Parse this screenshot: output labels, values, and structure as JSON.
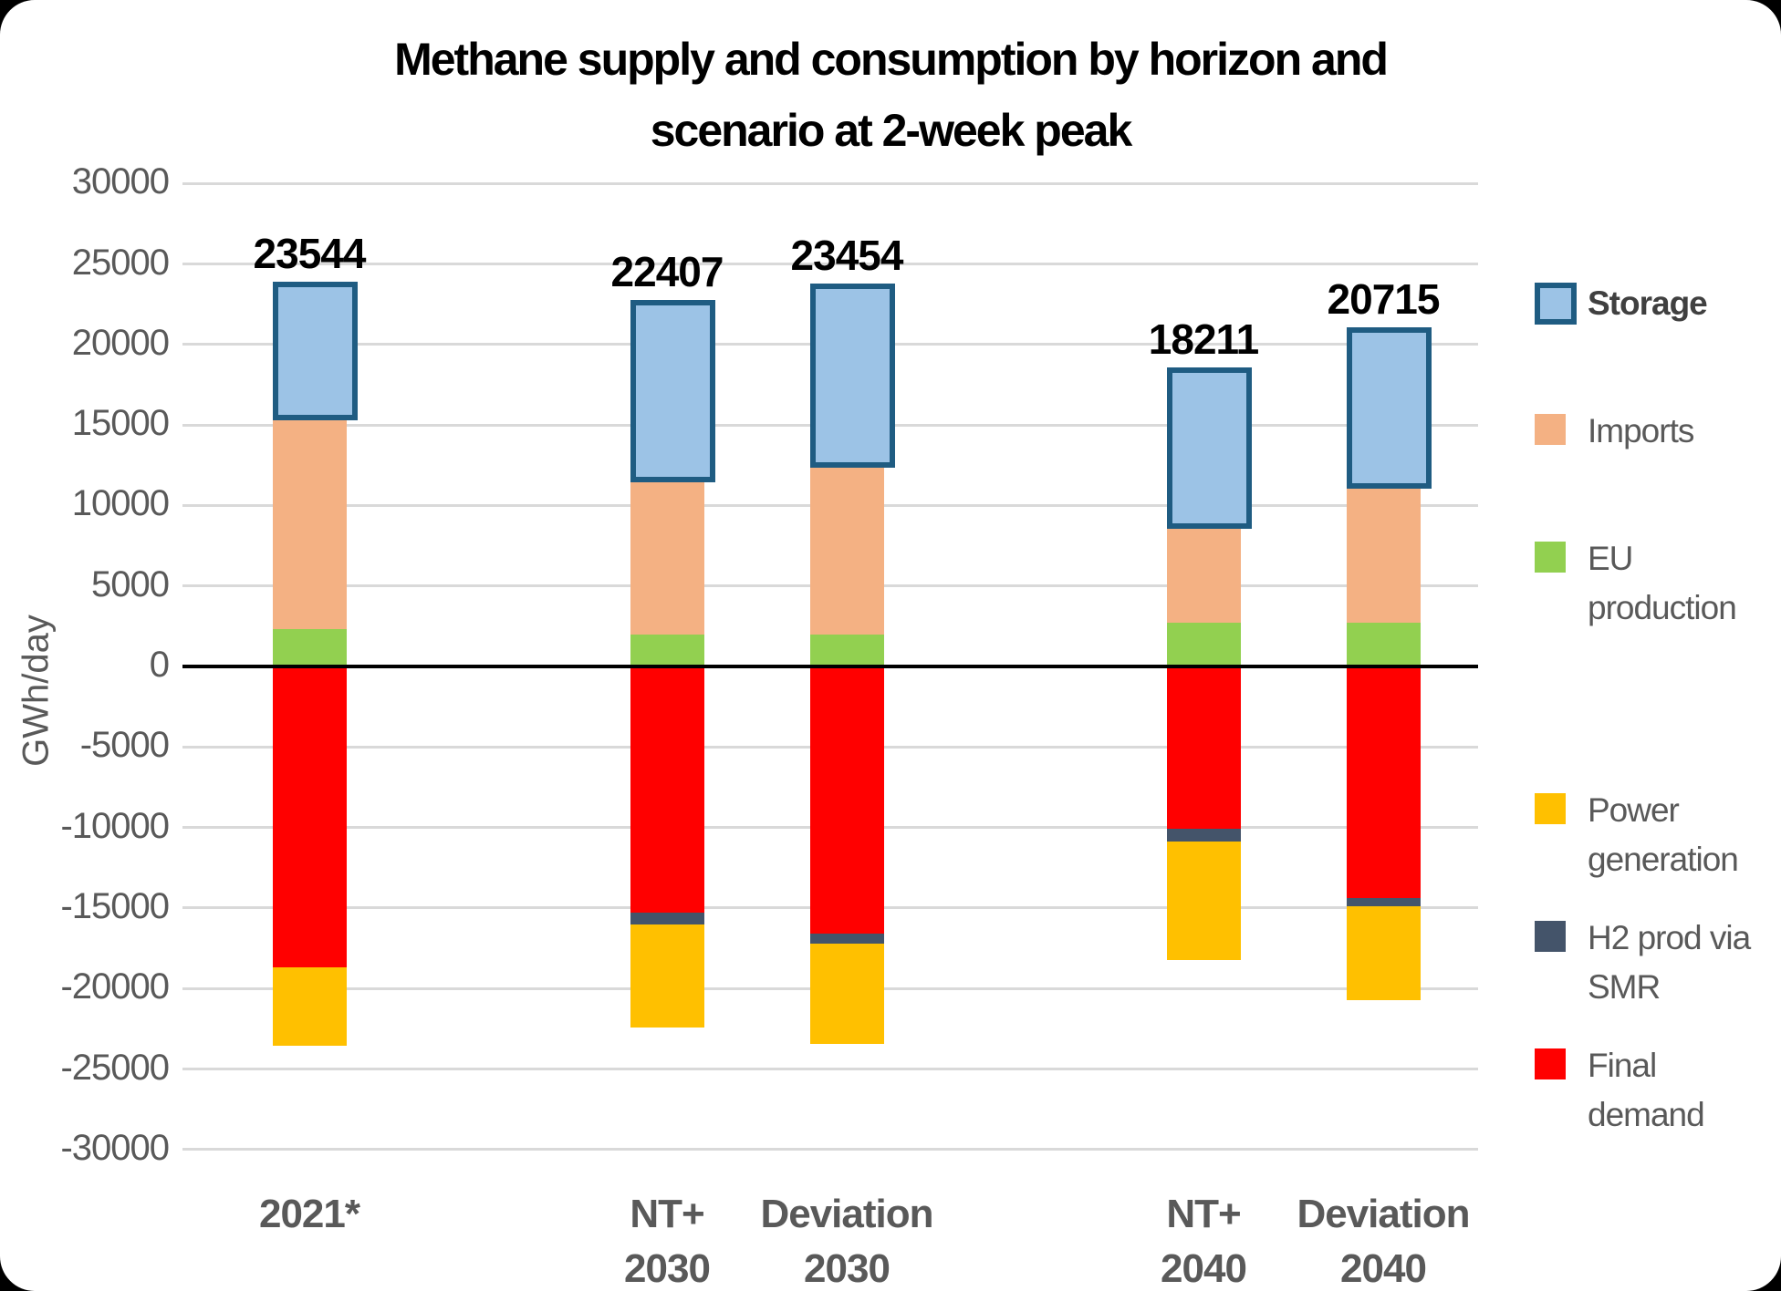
{
  "title": {
    "line1": "Methane supply and consumption by horizon and",
    "line2": "scenario at 2-week peak"
  },
  "y_axis": {
    "title": "GWh/day",
    "max": 30000,
    "min": -30000,
    "step": 5000
  },
  "legend": {
    "items": [
      {
        "label": "Storage",
        "series": "Storage",
        "bold": true
      },
      {
        "label": "Imports",
        "series": "Imports",
        "bold": false
      },
      {
        "label": "EU production",
        "series": "EU production",
        "bold": false
      },
      {
        "label": "Power generation",
        "series": "Power generation",
        "bold": false
      },
      {
        "label": "H2 prod via SMR",
        "series": "H2 prod via SMR",
        "bold": false
      },
      {
        "label": "Final demand",
        "series": "Final demand",
        "bold": false
      }
    ]
  },
  "chart_data": {
    "type": "bar",
    "stacked": true,
    "title": "Methane supply and consumption by horizon and scenario at 2-week peak",
    "xlabel": "",
    "ylabel": "GWh/day",
    "ylim": [
      -30000,
      30000
    ],
    "grid": true,
    "legend_position": "right",
    "categories": [
      "2021*",
      "NT+ 2030",
      "Deviation 2030",
      "NT+ 2040",
      "Deviation 2040"
    ],
    "category_lines": [
      [
        "2021*"
      ],
      [
        "NT+",
        "2030"
      ],
      [
        "Deviation",
        "2030"
      ],
      [
        "NT+",
        "2040"
      ],
      [
        "Deviation",
        "2040"
      ]
    ],
    "totals": [
      23544,
      22407,
      23454,
      18211,
      20715
    ],
    "series": [
      {
        "name": "Storage",
        "color": "#9CC3E6",
        "border": "#1F5C82",
        "values": [
          7944,
          10607,
          10754,
          9311,
          9315
        ]
      },
      {
        "name": "Imports",
        "color": "#F4B183",
        "values": [
          13300,
          9800,
          10700,
          6200,
          8700
        ]
      },
      {
        "name": "EU production",
        "color": "#92D050",
        "values": [
          2300,
          2000,
          2000,
          2700,
          2700
        ]
      },
      {
        "name": "Power generation",
        "color": "#FFC000",
        "values": [
          -4844,
          -6407,
          -6254,
          -7311,
          -5815
        ]
      },
      {
        "name": "H2 prod via SMR",
        "color": "#44546A",
        "values": [
          0,
          -700,
          -600,
          -800,
          -500
        ]
      },
      {
        "name": "Final demand",
        "color": "#FF0000",
        "values": [
          -18700,
          -15300,
          -16600,
          -10100,
          -14400
        ]
      }
    ]
  }
}
